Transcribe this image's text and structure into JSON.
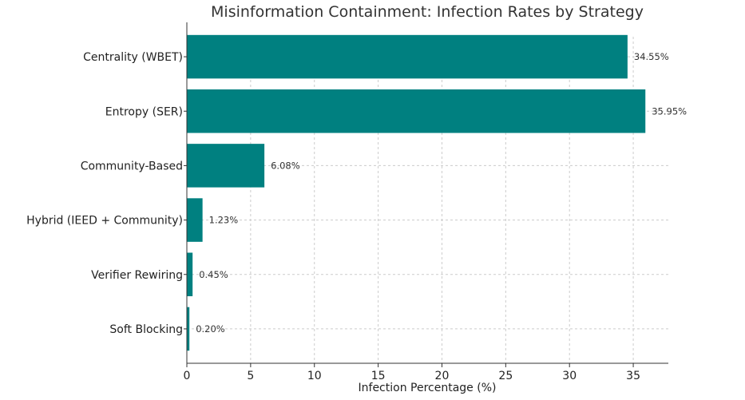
{
  "chart_data": {
    "type": "bar",
    "orientation": "horizontal",
    "title": "Misinformation Containment: Infection Rates by Strategy",
    "xlabel": "Infection Percentage (%)",
    "ylabel": "",
    "categories": [
      "Centrality (WBET)",
      "Entropy (SER)",
      "Community-Based",
      "Hybrid (IEED + Community)",
      "Verifier Rewiring",
      "Soft Blocking"
    ],
    "values": [
      34.55,
      35.95,
      6.08,
      1.23,
      0.45,
      0.2
    ],
    "data_labels": [
      "34.55%",
      "35.95%",
      "6.08%",
      "1.23%",
      "0.45%",
      "0.20%"
    ],
    "xlim": [
      0,
      37.75
    ],
    "xticks": [
      0,
      5,
      10,
      15,
      20,
      25,
      30,
      35
    ],
    "grid": true,
    "bar_color": "#008080"
  }
}
